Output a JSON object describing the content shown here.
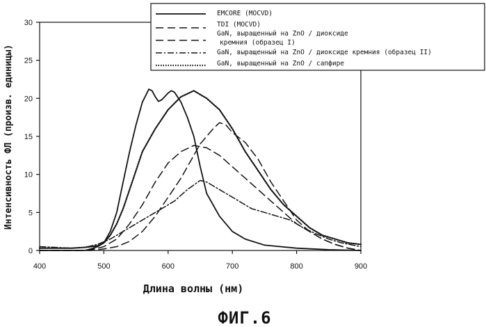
{
  "chart_data": {
    "type": "line",
    "xlabel": "Длина волны (нм)",
    "ylabel": "Интенсивность ФЛ (произв. единицы)",
    "xlim": [
      400,
      900
    ],
    "ylim": [
      0,
      30
    ],
    "xticks": [
      400,
      500,
      600,
      700,
      800,
      900
    ],
    "yticks": [
      0,
      5,
      10,
      15,
      20,
      25,
      30
    ],
    "grid": false,
    "legend_position": "top-right",
    "series": [
      {
        "name": "EMCORE (MOCVD)",
        "style": "solid",
        "x": [
          400,
          450,
          470,
          480,
          490,
          500,
          510,
          520,
          530,
          540,
          550,
          560,
          570,
          575,
          580,
          585,
          590,
          600,
          605,
          610,
          620,
          630,
          640,
          650,
          660,
          680,
          700,
          720,
          750,
          800,
          850,
          900
        ],
        "y": [
          0,
          0,
          0,
          0.2,
          0.5,
          1.0,
          2.5,
          5,
          9,
          13,
          16.5,
          19.5,
          21.2,
          21.0,
          20.2,
          19.6,
          19.8,
          20.7,
          21.0,
          20.8,
          19.5,
          17.5,
          15,
          11,
          7.5,
          4.5,
          2.5,
          1.5,
          0.7,
          0.3,
          0.1,
          0
        ]
      },
      {
        "name": "TDI (MOCVD)",
        "style": "dashed",
        "x": [
          400,
          460,
          480,
          500,
          520,
          540,
          560,
          580,
          600,
          620,
          640,
          660,
          680,
          700,
          720,
          740,
          760,
          780,
          800,
          820,
          840,
          860,
          880,
          900
        ],
        "y": [
          0,
          0,
          0.1,
          0.5,
          1.5,
          3.5,
          6,
          9,
          11.5,
          13,
          13.8,
          13.5,
          12.5,
          11,
          9.5,
          8,
          6.5,
          5,
          3.5,
          2.5,
          1.5,
          0.8,
          0.3,
          0
        ]
      },
      {
        "name": "GaN, выращенный на ZnO / диоксиде кремния (образец I)",
        "style": "dashed",
        "x": [
          400,
          480,
          500,
          520,
          540,
          560,
          580,
          600,
          620,
          630,
          640,
          650,
          660,
          670,
          680,
          690,
          700,
          720,
          740,
          760,
          780,
          800,
          820,
          840,
          860,
          880,
          900
        ],
        "y": [
          0,
          0,
          0.2,
          0.5,
          1.2,
          2.5,
          4.5,
          7,
          9.5,
          11,
          12.5,
          14,
          15,
          16,
          16.8,
          16.5,
          15.5,
          14.2,
          12,
          9,
          6.5,
          4,
          2.5,
          1.5,
          0.8,
          0.3,
          0
        ]
      },
      {
        "name": "GaN, выращенный на ZnO / диоксиде кремния (образец II)",
        "style": "dash-dot",
        "x": [
          400,
          450,
          470,
          490,
          510,
          530,
          550,
          570,
          590,
          610,
          630,
          650,
          660,
          670,
          690,
          710,
          730,
          750,
          770,
          790,
          810,
          830,
          850,
          870,
          900
        ],
        "y": [
          0.5,
          0.3,
          0.4,
          0.8,
          1.5,
          2.5,
          3.5,
          4.5,
          5.5,
          6.5,
          8,
          9.2,
          9.0,
          8.5,
          7.5,
          6.5,
          5.5,
          5,
          4.5,
          4,
          3,
          2.2,
          1.5,
          1.0,
          0.5
        ]
      },
      {
        "name": "GaN, выращенный на ZnO / сапфире",
        "style": "dotted",
        "x": [
          400,
          450,
          470,
          490,
          500,
          510,
          520,
          530,
          540,
          550,
          560,
          580,
          600,
          620,
          640,
          650,
          660,
          680,
          700,
          720,
          740,
          760,
          780,
          800,
          820,
          840,
          860,
          880,
          900
        ],
        "y": [
          0.3,
          0.3,
          0.4,
          0.6,
          1.0,
          2.0,
          3.5,
          5.5,
          8,
          10.5,
          13,
          16,
          18.5,
          20.2,
          21.0,
          20.5,
          20,
          18.5,
          16,
          13,
          10.5,
          8,
          6,
          4.5,
          3,
          2,
          1.5,
          1.0,
          0.8
        ]
      }
    ],
    "legend_lines": [
      "EMCORE (MOCVD)",
      "TDI (MOCVD)",
      "GaN, выращенный на ZnO / диоксиде",
      "кремния (образец I)",
      "GaN, выращенный на ZnO / диоксиде кремния (образец II)",
      "GaN, выращенный на ZnO / сапфире"
    ]
  },
  "caption": "ФИГ.6",
  "colors": {
    "line": "#111111",
    "background": "#ffffff"
  }
}
